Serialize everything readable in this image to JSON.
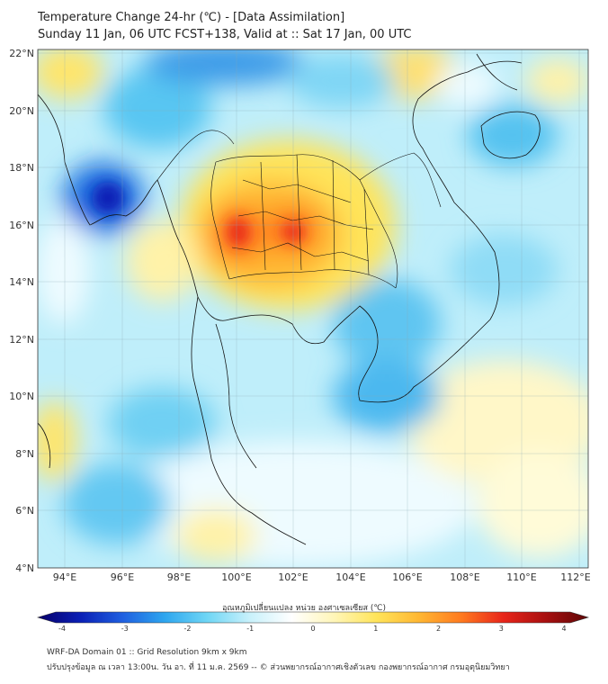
{
  "title": {
    "line1": "Temperature Change 24-hr (℃) - [Data Assimilation]",
    "line2": "Sunday 11 Jan, 06 UTC FCST+138, Valid at :: Sat 17 Jan, 00 UTC"
  },
  "axes": {
    "lat_labels": [
      "22°N",
      "20°N",
      "18°N",
      "16°N",
      "14°N",
      "12°N",
      "10°N",
      "8°N",
      "6°N",
      "4°N"
    ],
    "lon_labels": [
      "94°E",
      "96°E",
      "98°E",
      "100°E",
      "102°E",
      "104°E",
      "106°E",
      "108°E",
      "110°E",
      "112°E"
    ]
  },
  "colorbar": {
    "title": "อุณหภูมิเปลี่ยนแปลง หน่วย องศาเซลเซียส (℃)",
    "ticks": [
      "-4",
      "-3",
      "-2",
      "-1",
      "0",
      "1",
      "2",
      "3",
      "4"
    ],
    "colors": [
      "#08006a",
      "#0a1fb5",
      "#1f5fe0",
      "#2ea6ef",
      "#6fd6f5",
      "#c8f1fb",
      "#ffffff",
      "#fff6b8",
      "#ffe45a",
      "#ffb732",
      "#ff7a1f",
      "#e8251a",
      "#a80f0f",
      "#5e0606"
    ]
  },
  "footer": {
    "line1": "WRF-DA Domain 01 :: Grid Resolution 9km x 9km",
    "line2": "ปรับปรุงข้อมูล ณ เวลา 13:00น. วัน อา. ที่ 11 ม.ค. 2569 -- © ส่วนพยากรณ์อากาศเชิงตัวเลข กองพยากรณ์อากาศ กรมอุตุนิยมวิทยา"
  }
}
